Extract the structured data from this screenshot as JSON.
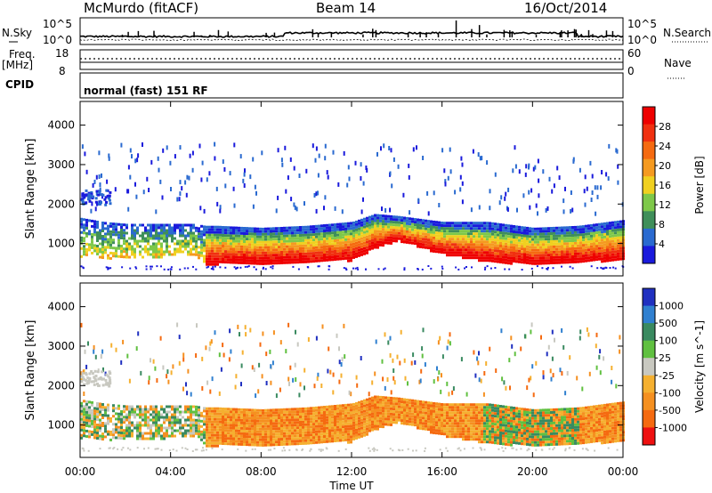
{
  "header": {
    "title": "McMurdo (fitACF)",
    "beam": "Beam 14",
    "date": "16/Oct/2014"
  },
  "top_panels": {
    "nsky_label": "N.Sky",
    "nsearch_label": "N.Search",
    "left_ticks": [
      "10^5",
      "10^0"
    ],
    "right_ticks": [
      "10^5",
      "10^0"
    ],
    "freq_label": "Freq.",
    "freq_unit": "[MHz]",
    "freq_ticks": [
      "18",
      "8"
    ],
    "nave_label": "Nave",
    "nave_ticks": [
      "60",
      "0"
    ],
    "cpid_label": "CPID",
    "cpid_text": "normal (fast) 151 RF"
  },
  "colors": {
    "power": [
      "#1a1adc",
      "#2a6ad0",
      "#3f8f5a",
      "#7ec84a",
      "#f0d020",
      "#f59a20",
      "#f56a10",
      "#f03010",
      "#ee0000"
    ],
    "velocity_pos": [
      "#2030c0",
      "#3080d0",
      "#3a8a60",
      "#60c040",
      "#c8c8c0"
    ],
    "velocity_neg": [
      "#f5b030",
      "#f59020",
      "#f56a10",
      "#ee1010"
    ]
  },
  "chart_data": [
    {
      "type": "heatmap",
      "title": "",
      "ylabel": "Slant Range [km]",
      "xlabel": "",
      "x_ticks": [
        "00:00",
        "04:00",
        "08:00",
        "12:00",
        "16:00",
        "20:00",
        "00:00"
      ],
      "x_range_hours": [
        0,
        24
      ],
      "y_ticks": [
        1000,
        2000,
        3000,
        4000
      ],
      "ylim": [
        180,
        4600
      ],
      "colorbar": {
        "label": "Power [dB]",
        "ticks": [
          "28",
          "24",
          "20",
          "16",
          "12",
          "8",
          "4"
        ],
        "range": [
          0,
          30
        ]
      },
      "scatter_band_km": {
        "hours": [
          0,
          1,
          2,
          3,
          4,
          5,
          5.5,
          6,
          8,
          10,
          12,
          13,
          14,
          16,
          18,
          20,
          22,
          24
        ],
        "bottom": [
          700,
          650,
          650,
          650,
          700,
          750,
          500,
          500,
          520,
          520,
          600,
          900,
          1100,
          750,
          550,
          500,
          550,
          600
        ],
        "top": [
          1650,
          1550,
          1500,
          1500,
          1500,
          1500,
          1450,
          1450,
          1400,
          1450,
          1550,
          1750,
          1700,
          1550,
          1550,
          1400,
          1450,
          1600
        ]
      }
    },
    {
      "type": "heatmap",
      "title": "",
      "ylabel": "Slant Range [km]",
      "xlabel": "Time UT",
      "x_ticks": [
        "00:00",
        "04:00",
        "08:00",
        "12:00",
        "16:00",
        "20:00",
        "00:00"
      ],
      "x_range_hours": [
        0,
        24
      ],
      "y_ticks": [
        1000,
        2000,
        3000,
        4000
      ],
      "ylim": [
        180,
        4600
      ],
      "colorbar": {
        "label": "Velocity [m s^-1]",
        "ticks": [
          "1000",
          "500",
          "100",
          "25",
          "-25",
          "-100",
          "-500",
          "-1000"
        ],
        "range": [
          -1200,
          1200
        ]
      }
    }
  ]
}
